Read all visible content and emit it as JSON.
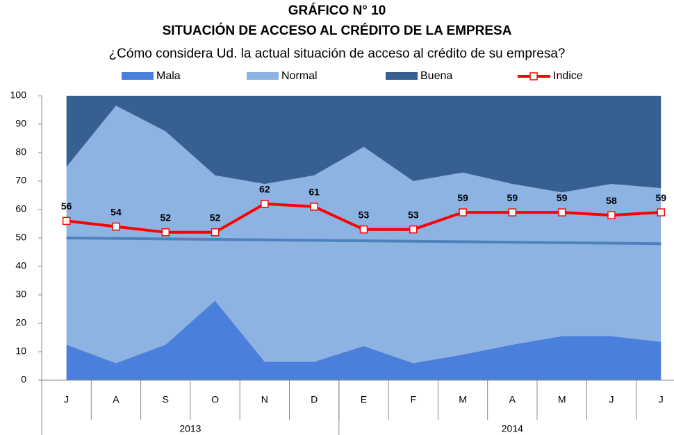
{
  "chart_data": {
    "type": "stacked_area_line",
    "title": "GRÁFICO N° 10",
    "subtitle": "SITUACIÓN DE ACCESO AL CRÉDITO DE LA EMPRESA",
    "question": "¿Cómo considera Ud. la actual situación de acceso al crédito de su empresa?",
    "categories": [
      "J",
      "A",
      "S",
      "O",
      "N",
      "D",
      "E",
      "F",
      "M",
      "A",
      "M",
      "J",
      "J"
    ],
    "x_groups": [
      {
        "label": "2013",
        "count": 6
      },
      {
        "label": "2014",
        "count": 7
      }
    ],
    "series": [
      {
        "name": "Mala",
        "color": "#4a7fdc",
        "values": [
          12.5,
          6,
          12.5,
          28,
          6.5,
          6.5,
          12,
          6,
          9,
          12.5,
          15.5,
          15.5,
          13.5
        ]
      },
      {
        "name": "Normal",
        "color": "#8db3e2",
        "values": [
          62.5,
          90.5,
          75,
          44,
          62.5,
          65.5,
          70,
          64,
          64,
          56.5,
          50.5,
          53.5,
          54
        ]
      },
      {
        "name": "Buena",
        "color": "#366092",
        "values": [
          25,
          3.5,
          12.5,
          28,
          31,
          28,
          18,
          30,
          27,
          31,
          34,
          31,
          32.5
        ]
      }
    ],
    "line": {
      "name": "Indice",
      "color": "#ff0000",
      "values": [
        56,
        54,
        52,
        52,
        62,
        61,
        53,
        53,
        59,
        59,
        59,
        58,
        59
      ]
    },
    "trendline": {
      "color": "#4f81bd",
      "values": [
        50,
        48
      ]
    },
    "ylim": [
      0,
      100
    ],
    "yticks": [
      0,
      10,
      20,
      30,
      40,
      50,
      60,
      70,
      80,
      90,
      100
    ]
  }
}
